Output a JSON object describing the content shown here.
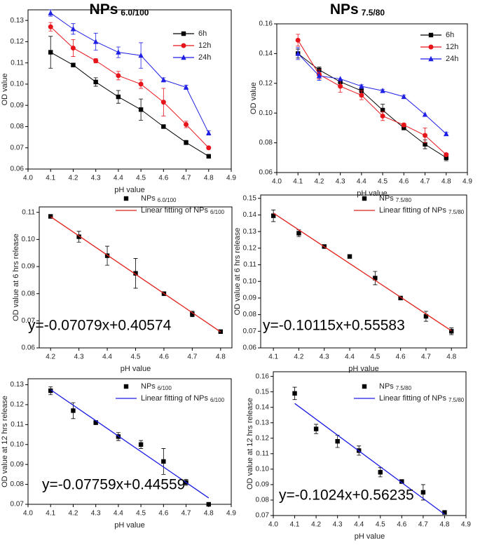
{
  "chart_data": [
    {
      "type": "line",
      "title": "NPs",
      "title_sub": "6.0/100",
      "x_label": "pH value",
      "y_label": "OD value",
      "x": [
        4.1,
        4.2,
        4.3,
        4.4,
        4.5,
        4.6,
        4.7,
        4.8
      ],
      "xlim": [
        4.0,
        4.9
      ],
      "xticks": [
        {
          "value": 4,
          "label": "4.0"
        },
        4.1,
        4.2,
        4.3,
        4.4,
        4.5,
        4.6,
        4.7,
        4.8,
        4.9
      ],
      "ylim": [
        0.06,
        0.135
      ],
      "yticks": [
        0.06,
        0.07,
        0.08,
        0.09,
        {
          "value": 0.1,
          "label": "0.10"
        },
        0.11,
        0.12,
        0.13
      ],
      "legend": "upper right",
      "series": [
        {
          "name": "6h",
          "color": "#000000",
          "marker": "square",
          "line": true,
          "values": [
            0.115,
            0.109,
            0.101,
            0.094,
            0.088,
            0.08,
            0.0725,
            0.066
          ],
          "errors": [
            0.0075,
            0,
            0.002,
            0.003,
            0.005,
            0,
            0.001,
            0
          ]
        },
        {
          "name": "12h",
          "color": "#e8141b",
          "marker": "circle",
          "line": true,
          "values": [
            0.127,
            0.117,
            0.111,
            0.104,
            0.1,
            0.0915,
            0.081,
            0.07
          ],
          "errors": [
            0.002,
            0.004,
            0.001,
            0.002,
            0.002,
            0.0065,
            0.0015,
            0
          ]
        },
        {
          "name": "24h",
          "color": "#1f1fe6",
          "marker": "triangle",
          "line": true,
          "values": [
            0.1335,
            0.126,
            0.12,
            0.115,
            0.1135,
            0.102,
            0.0985,
            0.077
          ],
          "errors": [
            0.0015,
            0.0025,
            0.004,
            0.0025,
            0.006,
            0.001,
            0.001,
            0.001
          ]
        }
      ]
    },
    {
      "type": "line",
      "title": "NPs",
      "title_sub": "7.5/80",
      "x_label": "pH value",
      "y_label": "OD value",
      "x": [
        4.1,
        4.2,
        4.3,
        4.4,
        4.5,
        4.6,
        4.7,
        4.8
      ],
      "xlim": [
        4.0,
        4.9
      ],
      "xticks": [
        {
          "value": 4,
          "label": "4.0"
        },
        4.1,
        4.2,
        4.3,
        4.4,
        4.5,
        4.6,
        4.7,
        4.8,
        4.9
      ],
      "ylim": [
        0.06,
        0.16
      ],
      "yticks": [
        0.06,
        0.08,
        {
          "value": 0.1,
          "label": "0.10"
        },
        0.12,
        0.14,
        0.16
      ],
      "legend": "upper right",
      "series": [
        {
          "name": "6h",
          "color": "#000000",
          "marker": "square",
          "line": true,
          "values": [
            0.14,
            0.129,
            0.121,
            0.115,
            0.102,
            0.09,
            0.079,
            0.07
          ],
          "errors": [
            0.003,
            0.002,
            0,
            0,
            0.004,
            0,
            0.003,
            0.002
          ]
        },
        {
          "name": "12h",
          "color": "#e8141b",
          "marker": "circle",
          "line": true,
          "values": [
            0.149,
            0.126,
            0.118,
            0.112,
            0.098,
            0.092,
            0.085,
            0.072
          ],
          "errors": [
            0.004,
            0.003,
            0.004,
            0.003,
            0.003,
            0.001,
            0.005,
            0.001
          ]
        },
        {
          "name": "24h",
          "color": "#1f1fe6",
          "marker": "triangle",
          "line": true,
          "values": [
            0.14,
            0.125,
            0.123,
            0.118,
            0.115,
            0.111,
            0.099,
            0.086
          ],
          "errors": [
            0.004,
            0.003,
            0,
            0.001,
            0.001,
            0.001,
            0,
            0.001
          ]
        }
      ]
    },
    {
      "type": "scatter",
      "x_label": "pH value",
      "y_label": "OD value at 6 hrs release",
      "annotation": "y=-0.07079x+0.40574",
      "xlim": [
        4.16,
        4.84
      ],
      "xticks": [
        4.2,
        4.3,
        4.4,
        4.5,
        4.6,
        4.7,
        4.8
      ],
      "ylim": [
        0.06,
        0.112
      ],
      "yticks": [
        0.06,
        0.07,
        0.08,
        0.09,
        {
          "value": 0.1,
          "label": "0.10"
        },
        0.11
      ],
      "legend": "upper right",
      "series": [
        {
          "name": "NPs",
          "name_sub": "6.0/100",
          "color": "#000000",
          "marker": "square",
          "line": false,
          "x": [
            4.2,
            4.3,
            4.4,
            4.5,
            4.6,
            4.7,
            4.8
          ],
          "values": [
            0.1085,
            0.101,
            0.094,
            0.0875,
            0.08,
            0.0725,
            0.066
          ],
          "errors": [
            0,
            0.002,
            0.0035,
            0.0055,
            0,
            0.001,
            0
          ]
        },
        {
          "name": "Linear fitting of NPs",
          "name_sub": "6/100",
          "color": "#e0201a",
          "marker": "none",
          "line": true,
          "x": [
            4.2,
            4.8
          ],
          "values": [
            0.1084,
            0.0659
          ]
        }
      ]
    },
    {
      "type": "scatter",
      "x_label": "pH value",
      "y_label": "OD value at 6 hrs release",
      "annotation": "y=-0.10115x+0.55583",
      "xlim": [
        4.05,
        4.86
      ],
      "xticks": [
        4.1,
        4.2,
        4.3,
        4.4,
        4.5,
        4.6,
        4.7,
        4.8
      ],
      "ylim": [
        0.06,
        0.152
      ],
      "yticks": [
        0.06,
        0.07,
        0.08,
        0.09,
        {
          "value": 0.1,
          "label": "0.10"
        },
        0.11,
        0.12,
        0.13,
        0.14,
        0.15
      ],
      "legend": "upper right",
      "series": [
        {
          "name": "NPs",
          "name_sub": "7.5/80",
          "color": "#000000",
          "marker": "square",
          "line": false,
          "x": [
            4.1,
            4.2,
            4.3,
            4.4,
            4.5,
            4.6,
            4.7,
            4.8
          ],
          "values": [
            0.1395,
            0.129,
            0.121,
            0.115,
            0.102,
            0.09,
            0.079,
            0.07
          ],
          "errors": [
            0.0035,
            0.002,
            0,
            0,
            0.004,
            0,
            0.003,
            0.002
          ]
        },
        {
          "name": "Linear fitting of NPs",
          "name_sub": "7.5/80",
          "color": "#e0201a",
          "marker": "none",
          "line": true,
          "x": [
            4.1,
            4.8
          ],
          "values": [
            0.1411,
            0.0703
          ]
        }
      ]
    },
    {
      "type": "scatter",
      "x_label": "pH value",
      "y_label": "OD value at 12 hrs release",
      "annotation": "y=-0.07759x+0.44559",
      "xlim": [
        4.0,
        4.9
      ],
      "xticks": [
        {
          "value": 4,
          "label": "4.0"
        },
        4.1,
        4.2,
        4.3,
        4.4,
        4.5,
        4.6,
        4.7,
        4.8,
        4.9
      ],
      "ylim": [
        0.07,
        0.133
      ],
      "yticks": [
        0.07,
        0.08,
        0.09,
        {
          "value": 0.1,
          "label": "0.10"
        },
        0.11,
        0.12,
        0.13
      ],
      "legend": "upper right",
      "series": [
        {
          "name": "NPs",
          "name_sub": "6/100",
          "color": "#000000",
          "marker": "square",
          "line": false,
          "x": [
            4.1,
            4.2,
            4.3,
            4.4,
            4.5,
            4.6,
            4.7,
            4.8
          ],
          "values": [
            0.127,
            0.117,
            0.111,
            0.104,
            0.1,
            0.0915,
            0.081,
            0.07
          ],
          "errors": [
            0.002,
            0.004,
            0.001,
            0.002,
            0.002,
            0.0065,
            0.0015,
            0
          ]
        },
        {
          "name": "Linear fitting of NPs",
          "name_sub": "6/100",
          "color": "#1a1ae6",
          "marker": "none",
          "line": true,
          "x": [
            4.1,
            4.8
          ],
          "values": [
            0.1275,
            0.0732
          ]
        }
      ]
    },
    {
      "type": "scatter",
      "x_label": "pH value",
      "y_label": "OD value at 12 hrs release",
      "annotation": "y=-0.1024x+0.56235",
      "xlim": [
        4.0,
        4.9
      ],
      "xticks": [
        {
          "value": 4,
          "label": "4.0"
        },
        4.1,
        4.2,
        4.3,
        4.4,
        4.5,
        4.6,
        4.7,
        4.8,
        4.9
      ],
      "ylim": [
        0.07,
        0.163
      ],
      "yticks": [
        0.07,
        0.08,
        0.09,
        {
          "value": 0.1,
          "label": "0.10"
        },
        0.11,
        0.12,
        0.13,
        0.14,
        0.15,
        0.16
      ],
      "legend": "upper right",
      "series": [
        {
          "name": "NPs",
          "name_sub": "7.5/80",
          "color": "#000000",
          "marker": "square",
          "line": false,
          "x": [
            4.1,
            4.2,
            4.3,
            4.4,
            4.5,
            4.6,
            4.7,
            4.8
          ],
          "values": [
            0.149,
            0.126,
            0.118,
            0.112,
            0.098,
            0.092,
            0.085,
            0.072
          ],
          "errors": [
            0.004,
            0.003,
            0.004,
            0.003,
            0.003,
            0.001,
            0.005,
            0.001
          ]
        },
        {
          "name": "Linear fitting of NPs",
          "name_sub": "7.5/80",
          "color": "#1a1ae6",
          "marker": "none",
          "line": true,
          "x": [
            4.1,
            4.8
          ],
          "values": [
            0.1425,
            0.0708
          ]
        }
      ]
    }
  ]
}
